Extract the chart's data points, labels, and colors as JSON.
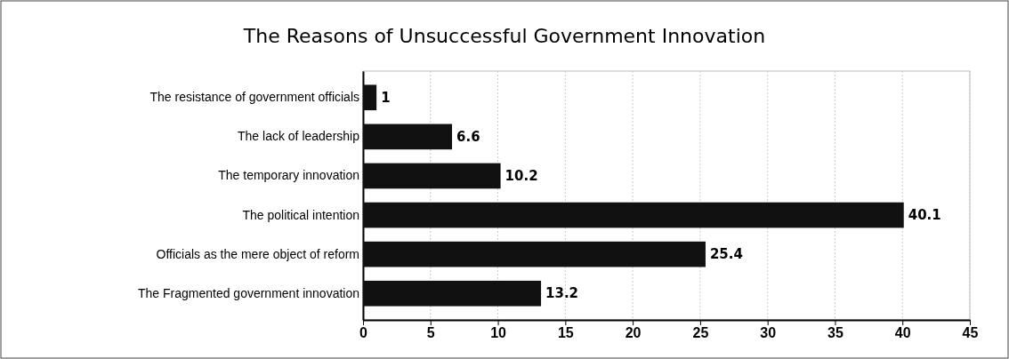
{
  "chart_data": {
    "type": "bar",
    "orientation": "horizontal",
    "title": "The Reasons of Unsuccessful Government Innovation",
    "categories": [
      "The resistance of government officials",
      "The lack of leadership",
      "The temporary innovation",
      "The political intention",
      "Officials as the mere object of reform",
      "The Fragmented government innovation"
    ],
    "values": [
      1,
      6.6,
      10.2,
      40.1,
      25.4,
      13.2
    ],
    "color": "#111111",
    "xlim": [
      0,
      45
    ],
    "xticks": [
      0,
      5,
      10,
      15,
      20,
      25,
      30,
      35,
      40,
      45
    ],
    "grid": "x",
    "data_labels": true
  }
}
